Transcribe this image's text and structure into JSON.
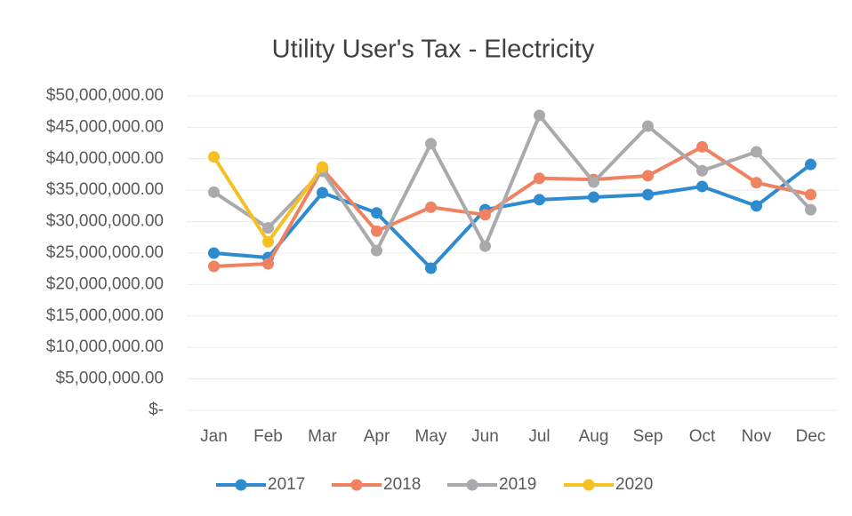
{
  "chart_data": {
    "type": "line",
    "title": "Utility User's Tax - Electricity",
    "categories": [
      "Jan",
      "Feb",
      "Mar",
      "Apr",
      "May",
      "Jun",
      "Jul",
      "Aug",
      "Sep",
      "Oct",
      "Nov",
      "Dec"
    ],
    "series": [
      {
        "name": "2017",
        "color": "#2e8bd0",
        "values": [
          25000000,
          24300000,
          34600000,
          31400000,
          22600000,
          31900000,
          33500000,
          33900000,
          34300000,
          35600000,
          32500000,
          39100000
        ]
      },
      {
        "name": "2018",
        "color": "#f08262",
        "values": [
          22900000,
          23300000,
          38400000,
          28500000,
          32300000,
          31100000,
          36900000,
          36700000,
          37300000,
          41900000,
          36200000,
          34300000
        ]
      },
      {
        "name": "2019",
        "color": "#aaaaae",
        "values": [
          34700000,
          29000000,
          38000000,
          25400000,
          42400000,
          26100000,
          46900000,
          36300000,
          45200000,
          38100000,
          41100000,
          31900000
        ]
      },
      {
        "name": "2020",
        "color": "#f5c023",
        "values": [
          40300000,
          26800000,
          38700000,
          null,
          null,
          null,
          null,
          null,
          null,
          null,
          null,
          null
        ]
      }
    ],
    "ylim": [
      0,
      50000000
    ],
    "yticks": [
      {
        "value": 0,
        "label": "$-"
      },
      {
        "value": 5000000,
        "label": "$5,000,000.00"
      },
      {
        "value": 10000000,
        "label": "$10,000,000.00"
      },
      {
        "value": 15000000,
        "label": "$15,000,000.00"
      },
      {
        "value": 20000000,
        "label": "$20,000,000.00"
      },
      {
        "value": 25000000,
        "label": "$25,000,000.00"
      },
      {
        "value": 30000000,
        "label": "$30,000,000.00"
      },
      {
        "value": 35000000,
        "label": "$35,000,000.00"
      },
      {
        "value": 40000000,
        "label": "$40,000,000.00"
      },
      {
        "value": 45000000,
        "label": "$45,000,000.00"
      },
      {
        "value": 50000000,
        "label": "$50,000,000.00"
      }
    ],
    "grid": true,
    "legend": "bottom"
  }
}
